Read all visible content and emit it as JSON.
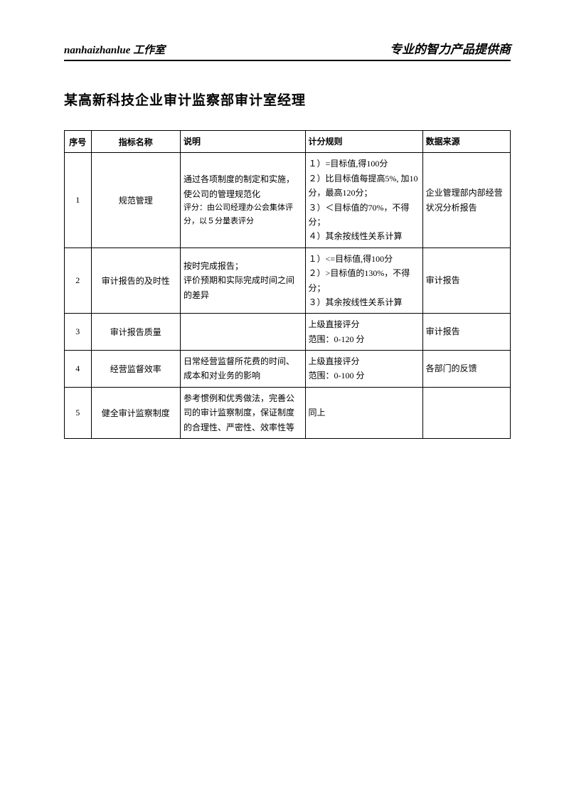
{
  "header": {
    "left_en": "nanhaizhanlue",
    "left_cn": " 工作室",
    "right": "专业的智力产品提供商"
  },
  "title": "某高新科技企业审计监察部审计室经理",
  "table": {
    "headers": {
      "seq": "序号",
      "name": "指标名称",
      "desc": "说明",
      "rule": "计分规则",
      "source": "数据来源"
    },
    "rows": [
      {
        "seq": "1",
        "name": "规范管理",
        "desc_main": "通过各项制度的制定和实施，使公司的管理规范化",
        "desc_sub": "评分：由公司经理办公会集体评分，以５分量表评分",
        "rule": "１）=目标值,得100分\n２）比目标值每提高5%, 加10分，最高120分；\n３）＜目标值的70%，不得分；\n４）其余按线性关系计算",
        "source": "企业管理部内部经营状况分析报告"
      },
      {
        "seq": "2",
        "name": "审计报告的及时性",
        "desc_main": "按时完成报告；\n评价预期和实际完成时间之间的差异",
        "desc_sub": "",
        "rule": "１）<=目标值,得100分\n２）>目标值的130%，不得分；\n３）其余按线性关系计算",
        "source": "审计报告"
      },
      {
        "seq": "3",
        "name": "审计报告质量",
        "desc_main": "",
        "desc_sub": "",
        "rule": "上级直接评分\n范围：0-120 分",
        "source": "审计报告"
      },
      {
        "seq": "4",
        "name": "经营监督效率",
        "desc_main": "日常经营监督所花费的时间、成本和对业务的影响",
        "desc_sub": "",
        "rule": "上级直接评分\n范围：0-100 分",
        "source": "各部门的反馈"
      },
      {
        "seq": "5",
        "name": "健全审计监察制度",
        "desc_main": "参考惯例和优秀做法，完善公司的审计监察制度，保证制度的合理性、严密性、效率性等",
        "desc_sub": "",
        "rule": "同上",
        "source": ""
      }
    ]
  }
}
